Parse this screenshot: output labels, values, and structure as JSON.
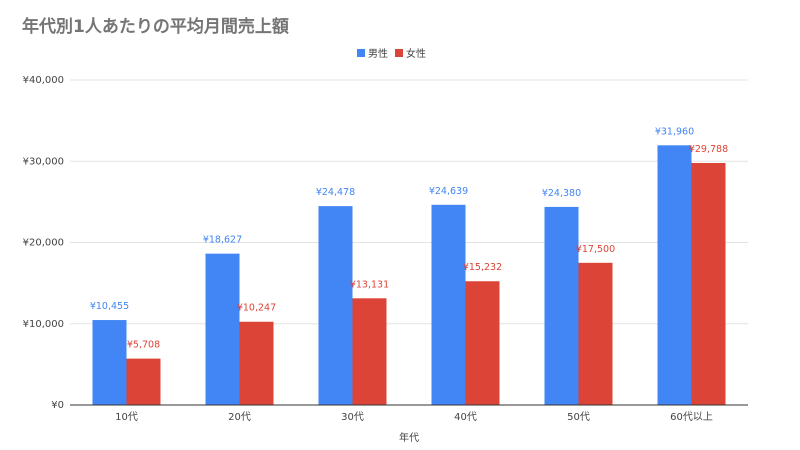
{
  "chart_data": {
    "type": "bar",
    "title": "年代別1人あたりの平均月間売上額",
    "xlabel": "年代",
    "ylabel": "",
    "categories": [
      "10代",
      "20代",
      "30代",
      "40代",
      "50代",
      "60代以上"
    ],
    "series": [
      {
        "name": "男性",
        "color": "#4285F4",
        "values": [
          10455,
          18627,
          24478,
          24639,
          24380,
          31960
        ],
        "labels": [
          "¥10,455",
          "¥18,627",
          "¥24,478",
          "¥24,639",
          "¥24,380",
          "¥31,960"
        ]
      },
      {
        "name": "女性",
        "color": "#DB4437",
        "values": [
          5708,
          10247,
          13131,
          15232,
          17500,
          29788
        ],
        "labels": [
          "¥5,708",
          "¥10,247",
          "¥13,131",
          "¥15,232",
          "¥17,500",
          "¥29,788"
        ]
      }
    ],
    "ylim": [
      0,
      40000
    ],
    "yticks": [
      0,
      10000,
      20000,
      30000,
      40000
    ],
    "ytick_labels": [
      "¥0",
      "¥10,000",
      "¥20,000",
      "¥30,000",
      "¥40,000"
    ],
    "grid": true,
    "legend_position": "top-center"
  }
}
